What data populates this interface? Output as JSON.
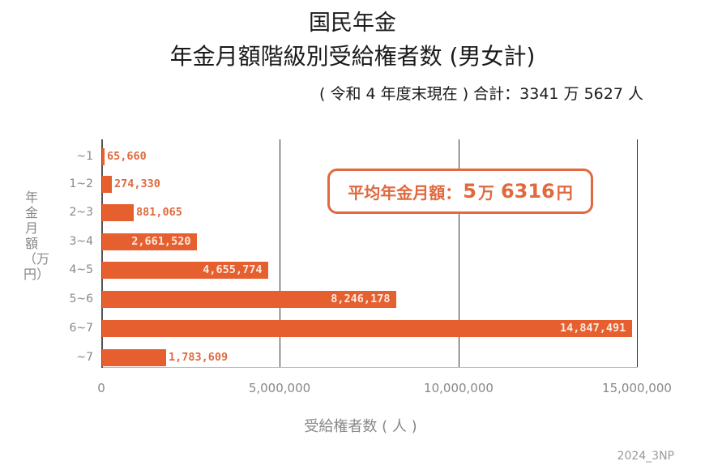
{
  "header": {
    "title_line1": "国民年金",
    "title_line2": "年金月額階級別受給権者数 (男女計)",
    "subtitle": "( 令和 4 年度末現在 ) 合計：3341 万 5627 人"
  },
  "callout": {
    "label": "平均年金月額：",
    "amount_man": "5",
    "unit_man": "万",
    "amount_rest": "6316",
    "unit_yen": "円"
  },
  "axes": {
    "ylabel": "年金月額（万円）",
    "xlabel": "受給権者数 ( 人 )",
    "xticks": [
      "0",
      "5,000,000",
      "10,000,000",
      "15,000,000"
    ]
  },
  "credit": "2024_3NP",
  "colors": {
    "bar": "#e55f2f",
    "label_out": "#e0693e",
    "label_in": "#fbe8df",
    "axis_text": "#888888"
  },
  "chart_data": {
    "type": "bar",
    "orientation": "horizontal",
    "title": "国民年金 年金月額階級別受給権者数 (男女計)",
    "subtitle": "( 令和 4 年度末現在 ) 合計：3341 万 5627 人",
    "categories": [
      "~1",
      "1~2",
      "2~3",
      "3~4",
      "4~5",
      "5~6",
      "6~7",
      "~7"
    ],
    "values": [
      65660,
      274330,
      881065,
      2661520,
      4655774,
      8246178,
      14847491,
      1783609
    ],
    "value_labels": [
      "65,660",
      "274,330",
      "881,065",
      "2,661,520",
      "4,655,774",
      "8,246,178",
      "14,847,491",
      "1,783,609"
    ],
    "xlabel": "受給権者数 ( 人 )",
    "ylabel": "年金月額（万円）",
    "xlim": [
      0,
      15000000
    ],
    "xticks": [
      0,
      5000000,
      10000000,
      15000000
    ],
    "grid": "vertical",
    "annotation": "平均年金月額：5 万 6316 円",
    "legend": null
  }
}
